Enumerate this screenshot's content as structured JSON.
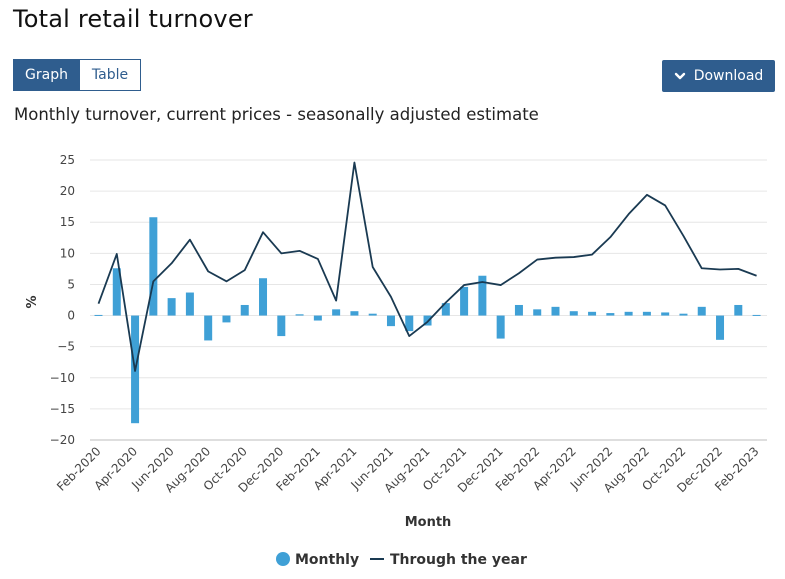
{
  "header": {
    "title": "Total retail turnover",
    "view_toggle": {
      "graph_label": "Graph",
      "table_label": "Table",
      "selected": "Graph"
    },
    "download_label": "Download"
  },
  "chart_data": {
    "type": "bar",
    "title": "Monthly turnover, current prices - seasonally adjusted estimate",
    "xlabel": "Month",
    "ylabel": "%",
    "ylim": [
      -20,
      25
    ],
    "yticks": [
      25,
      20,
      15,
      10,
      5,
      0,
      -5,
      -10,
      -15,
      -20
    ],
    "grid": true,
    "legend_position": "bottom",
    "colors": {
      "monthly": "#3fa0d6",
      "through_the_year": "#1a3a52",
      "grid": "#e6e6e6"
    },
    "categories": [
      "Feb-2020",
      "Mar-2020",
      "Apr-2020",
      "May-2020",
      "Jun-2020",
      "Jul-2020",
      "Aug-2020",
      "Sep-2020",
      "Oct-2020",
      "Nov-2020",
      "Dec-2020",
      "Jan-2021",
      "Feb-2021",
      "Mar-2021",
      "Apr-2021",
      "May-2021",
      "Jun-2021",
      "Jul-2021",
      "Aug-2021",
      "Sep-2021",
      "Oct-2021",
      "Nov-2021",
      "Dec-2021",
      "Jan-2022",
      "Feb-2022",
      "Mar-2022",
      "Apr-2022",
      "May-2022",
      "Jun-2022",
      "Jul-2022",
      "Aug-2022",
      "Sep-2022",
      "Oct-2022",
      "Nov-2022",
      "Dec-2022",
      "Jan-2023",
      "Feb-2023"
    ],
    "xtick_labels": [
      "Feb-2020",
      "Apr-2020",
      "Jun-2020",
      "Aug-2020",
      "Oct-2020",
      "Dec-2020",
      "Feb-2021",
      "Apr-2021",
      "Jun-2021",
      "Aug-2021",
      "Oct-2021",
      "Dec-2021",
      "Feb-2022",
      "Apr-2022",
      "Jun-2022",
      "Aug-2022",
      "Oct-2022",
      "Dec-2022",
      "Feb-2023"
    ],
    "series": [
      {
        "name": "Monthly",
        "kind": "bar",
        "values": [
          0.1,
          7.6,
          -17.3,
          15.8,
          2.8,
          3.7,
          -4.0,
          -1.1,
          1.7,
          6.0,
          -3.3,
          0.2,
          -0.8,
          1.0,
          0.7,
          0.3,
          -1.7,
          -2.5,
          -1.6,
          2.0,
          4.6,
          6.4,
          -3.7,
          1.7,
          1.0,
          1.4,
          0.7,
          0.6,
          0.4,
          0.6,
          0.6,
          0.5,
          0.3,
          1.4,
          -3.9,
          1.7,
          0.1
        ]
      },
      {
        "name": "Through the year",
        "kind": "line",
        "values": [
          1.9,
          9.9,
          -8.9,
          5.5,
          8.4,
          12.2,
          7.1,
          5.5,
          7.3,
          13.4,
          10.0,
          10.4,
          9.1,
          2.4,
          24.6,
          7.8,
          3.0,
          -3.3,
          -1.0,
          2.1,
          4.9,
          5.4,
          4.9,
          6.8,
          9.0,
          9.3,
          9.4,
          9.8,
          12.6,
          16.3,
          19.4,
          17.7,
          12.8,
          7.6,
          7.4,
          7.5,
          6.4
        ]
      }
    ]
  }
}
